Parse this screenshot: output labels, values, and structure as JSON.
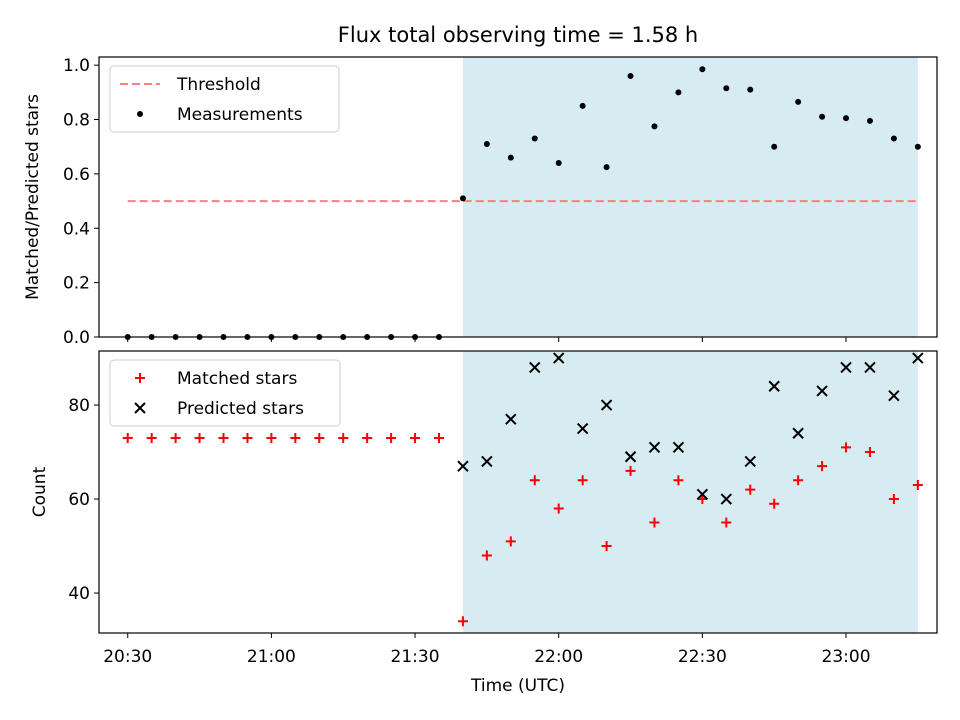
{
  "chart_data": [
    {
      "type": "scatter",
      "title": "Flux total observing time = 1.58 h",
      "xlabel": "",
      "ylabel": "Matched/Predicted stars",
      "ylim": [
        0,
        1.03
      ],
      "yticks": [
        "0.0",
        "0.2",
        "0.4",
        "0.6",
        "0.8",
        "1.0"
      ],
      "x_range": [
        "20:24",
        "23:19"
      ],
      "shaded_range": [
        "21:40",
        "23:15"
      ],
      "series": [
        {
          "name": "Threshold",
          "style": "dashed-line",
          "color": "#ff7f7f",
          "x": [
            "20:30",
            "23:15"
          ],
          "values": [
            0.5,
            0.5
          ]
        },
        {
          "name": "Measurements",
          "style": "dot",
          "color": "#000000",
          "x": [
            "20:30",
            "20:35",
            "20:40",
            "20:45",
            "20:50",
            "20:55",
            "21:00",
            "21:05",
            "21:10",
            "21:15",
            "21:20",
            "21:25",
            "21:30",
            "21:35",
            "21:40",
            "21:45",
            "21:50",
            "21:55",
            "22:00",
            "22:05",
            "22:10",
            "22:15",
            "22:20",
            "22:25",
            "22:30",
            "22:35",
            "22:40",
            "22:45",
            "22:50",
            "22:55",
            "23:00",
            "23:05",
            "23:10",
            "23:15"
          ],
          "values": [
            0,
            0,
            0,
            0,
            0,
            0,
            0,
            0,
            0,
            0,
            0,
            0,
            0,
            0,
            0.51,
            0.71,
            0.66,
            0.73,
            0.64,
            0.85,
            0.625,
            0.96,
            0.775,
            0.9,
            0.985,
            0.915,
            0.91,
            0.7,
            0.865,
            0.81,
            0.805,
            0.795,
            0.73,
            0.7
          ]
        }
      ]
    },
    {
      "type": "scatter",
      "title": "",
      "xlabel": "Time (UTC)",
      "ylabel": "Count",
      "ylim": [
        31.5,
        91.5
      ],
      "yticks": [
        "40",
        "60",
        "80"
      ],
      "xticks": [
        "20:30",
        "21:00",
        "21:30",
        "22:00",
        "22:30",
        "23:00"
      ],
      "x_range": [
        "20:24",
        "23:19"
      ],
      "shaded_range": [
        "21:40",
        "23:15"
      ],
      "series": [
        {
          "name": "Matched stars",
          "marker": "+",
          "color": "#ff0000",
          "x": [
            "20:30",
            "20:35",
            "20:40",
            "20:45",
            "20:50",
            "20:55",
            "21:00",
            "21:05",
            "21:10",
            "21:15",
            "21:20",
            "21:25",
            "21:30",
            "21:35",
            "21:40",
            "21:45",
            "21:50",
            "21:55",
            "22:00",
            "22:05",
            "22:10",
            "22:15",
            "22:20",
            "22:25",
            "22:30",
            "22:35",
            "22:40",
            "22:45",
            "22:50",
            "22:55",
            "23:00",
            "23:05",
            "23:10",
            "23:15"
          ],
          "values": [
            73,
            73,
            73,
            73,
            73,
            73,
            73,
            73,
            73,
            73,
            73,
            73,
            73,
            73,
            34,
            48,
            51,
            64,
            58,
            64,
            50,
            66,
            55,
            64,
            60,
            55,
            62,
            59,
            64,
            67,
            71,
            70,
            60,
            63
          ]
        },
        {
          "name": "Predicted stars",
          "marker": "x",
          "color": "#000000",
          "x": [
            "21:40",
            "21:45",
            "21:50",
            "21:55",
            "22:00",
            "22:05",
            "22:10",
            "22:15",
            "22:20",
            "22:25",
            "22:30",
            "22:35",
            "22:40",
            "22:45",
            "22:50",
            "22:55",
            "23:00",
            "23:05",
            "23:10",
            "23:15"
          ],
          "values": [
            67,
            68,
            77,
            88,
            90,
            75,
            80,
            69,
            71,
            71,
            61,
            60,
            68,
            84,
            74,
            83,
            88,
            88,
            82,
            90
          ]
        }
      ]
    }
  ],
  "colors": {
    "shade": "#add8e6",
    "axes": "#000000"
  }
}
